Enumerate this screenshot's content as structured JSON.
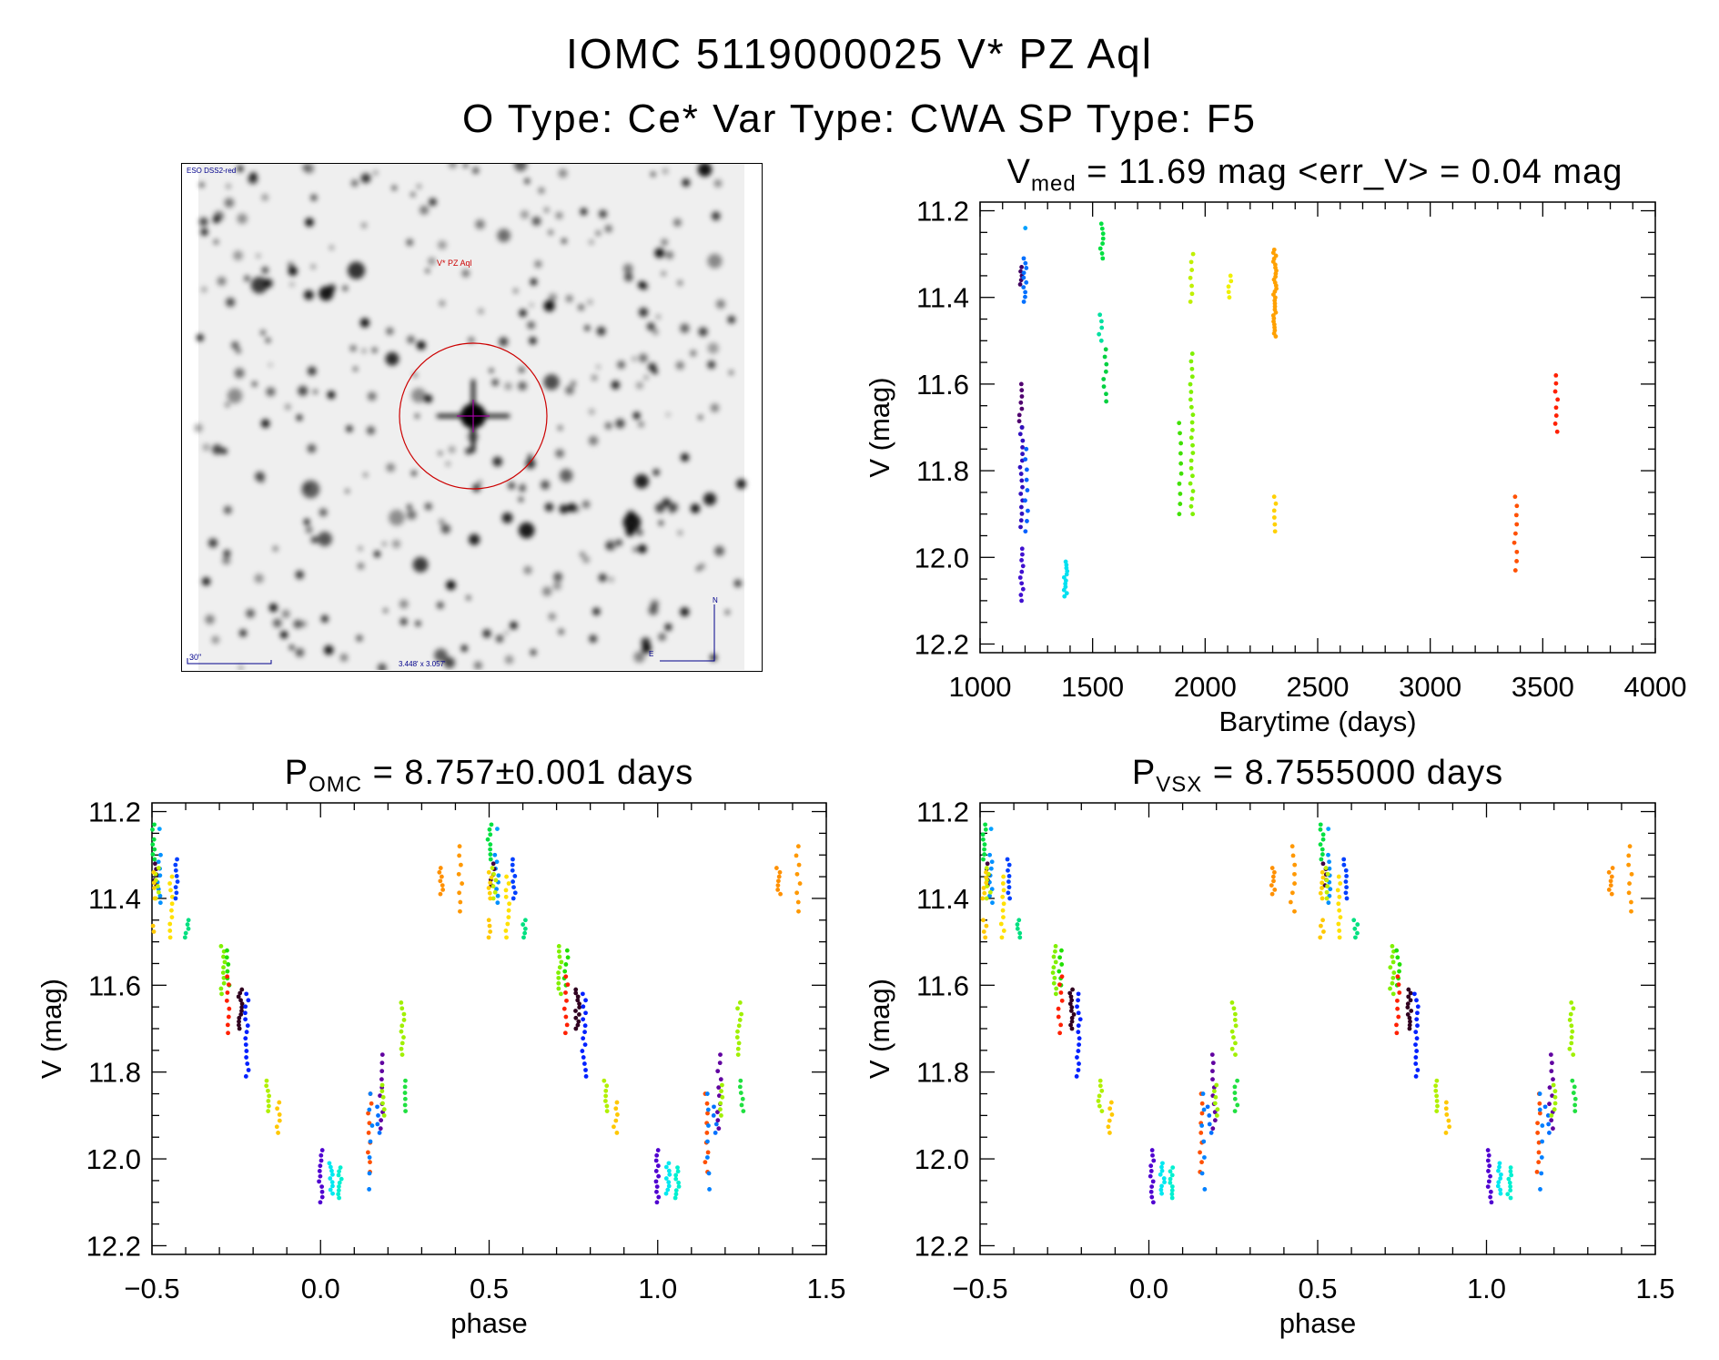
{
  "header": {
    "title_line1": "IOMC 5119000025    V* PZ Aql",
    "title_line2": "O Type: Ce*   Var Type: CWA   SP Type: F5"
  },
  "finder_image": {
    "survey_label": "ESO DSS2-red",
    "target_label": "V* PZ Aql",
    "scale_label": "30\"",
    "fov_label": "3.448' x 3.057'",
    "north_label": "N",
    "east_label": "E",
    "circle_color": "#cc0000",
    "label_color": "#00008b"
  },
  "chart_data": [
    {
      "type": "scatter",
      "id": "lightcurve",
      "title_main": "V",
      "title_sub": "med",
      "title_rest": " =  11.69 mag <err_V> =  0.04 mag",
      "xlabel": "Barytime (days)",
      "ylabel": "V (mag)",
      "xlim": [
        1000,
        4000
      ],
      "ylim": [
        12.22,
        11.18
      ],
      "xticks": [
        "1000",
        "1500",
        "2000",
        "2500",
        "3000",
        "3500",
        "4000"
      ],
      "yticks": [
        "11.2",
        "11.4",
        "11.6",
        "11.8",
        "12.0",
        "12.2"
      ],
      "clusters": [
        {
          "x": 1180,
          "ymin": 11.33,
          "ymax": 11.37,
          "n": 5,
          "color": "#400060"
        },
        {
          "x": 1180,
          "ymin": 11.6,
          "ymax": 11.7,
          "n": 8,
          "color": "#500070"
        },
        {
          "x": 1183,
          "ymin": 11.7,
          "ymax": 11.93,
          "n": 16,
          "color": "#3010c0"
        },
        {
          "x": 1185,
          "ymin": 11.98,
          "ymax": 12.1,
          "n": 10,
          "color": "#4010d0"
        },
        {
          "x": 1200,
          "ymin": 11.31,
          "ymax": 11.41,
          "n": 10,
          "color": "#0070ff"
        },
        {
          "x": 1200,
          "ymin": 11.24,
          "ymax": 11.24,
          "n": 1,
          "color": "#00a0ff"
        },
        {
          "x": 1205,
          "ymin": 11.75,
          "ymax": 11.94,
          "n": 9,
          "color": "#0060ff"
        },
        {
          "x": 1380,
          "ymin": 12.01,
          "ymax": 12.09,
          "n": 12,
          "color": "#00e0f0"
        },
        {
          "x": 1540,
          "ymin": 11.23,
          "ymax": 11.31,
          "n": 8,
          "color": "#00e040"
        },
        {
          "x": 1535,
          "ymin": 11.44,
          "ymax": 11.5,
          "n": 5,
          "color": "#00e0a0"
        },
        {
          "x": 1555,
          "ymin": 11.52,
          "ymax": 11.64,
          "n": 8,
          "color": "#00d040"
        },
        {
          "x": 1890,
          "ymin": 11.69,
          "ymax": 11.9,
          "n": 10,
          "color": "#40e000"
        },
        {
          "x": 1940,
          "ymin": 11.3,
          "ymax": 11.41,
          "n": 7,
          "color": "#c0f000"
        },
        {
          "x": 1940,
          "ymin": 11.53,
          "ymax": 11.9,
          "n": 22,
          "color": "#80f000"
        },
        {
          "x": 2110,
          "ymin": 11.35,
          "ymax": 11.4,
          "n": 5,
          "color": "#f0f000"
        },
        {
          "x": 2310,
          "ymin": 11.29,
          "ymax": 11.49,
          "n": 30,
          "color": "#ffa000"
        },
        {
          "x": 2310,
          "ymin": 11.86,
          "ymax": 11.94,
          "n": 6,
          "color": "#ffd000"
        },
        {
          "x": 3380,
          "ymin": 11.86,
          "ymax": 12.03,
          "n": 9,
          "color": "#ff5000"
        },
        {
          "x": 3560,
          "ymin": 11.58,
          "ymax": 11.71,
          "n": 8,
          "color": "#ff2000"
        }
      ]
    },
    {
      "type": "scatter",
      "id": "phase_omc",
      "title_main": "P",
      "title_sub": "OMC",
      "title_rest": " =  8.757±0.001 days",
      "xlabel": "phase",
      "ylabel": "V (mag)",
      "xlim": [
        -0.5,
        1.5
      ],
      "ylim": [
        12.22,
        11.18
      ],
      "xticks": [
        "−0.5",
        "0.0",
        "0.5",
        "1.0",
        "1.5"
      ],
      "yticks": [
        "11.2",
        "11.4",
        "11.6",
        "11.8",
        "12.0",
        "12.2"
      ],
      "phase_shift": 0.0
    },
    {
      "type": "scatter",
      "id": "phase_vsx",
      "title_main": "P",
      "title_sub": "VSX",
      "title_rest": " =  8.7555000 days",
      "xlabel": "phase",
      "ylabel": "V (mag)",
      "xlim": [
        -0.5,
        1.5
      ],
      "ylim": [
        12.22,
        11.18
      ],
      "xticks": [
        "−0.5",
        "0.0",
        "0.5",
        "1.0",
        "1.5"
      ],
      "yticks": [
        "11.2",
        "11.4",
        "11.6",
        "11.8",
        "12.0",
        "12.2"
      ],
      "phase_shift": 0.01
    }
  ],
  "phase_clusters": [
    {
      "x": -0.498,
      "ymin": 11.23,
      "ymax": 11.31,
      "n": 8,
      "color": "#00e040"
    },
    {
      "x": -0.478,
      "ymin": 11.3,
      "ymax": 11.41,
      "n": 8,
      "color": "#0090ff"
    },
    {
      "x": -0.478,
      "ymin": 11.24,
      "ymax": 11.24,
      "n": 1,
      "color": "#00a0ff"
    },
    {
      "x": -0.49,
      "ymin": 11.32,
      "ymax": 11.37,
      "n": 5,
      "color": "#400040"
    },
    {
      "x": -0.485,
      "ymin": 11.33,
      "ymax": 11.4,
      "n": 6,
      "color": "#c0f000"
    },
    {
      "x": -0.497,
      "ymin": 11.34,
      "ymax": 11.4,
      "n": 6,
      "color": "#ffd000"
    },
    {
      "x": -0.497,
      "ymin": 11.45,
      "ymax": 11.49,
      "n": 4,
      "color": "#ffc800"
    },
    {
      "x": -0.445,
      "ymin": 11.35,
      "ymax": 11.49,
      "n": 10,
      "color": "#ffe000"
    },
    {
      "x": -0.428,
      "ymin": 11.31,
      "ymax": 11.4,
      "n": 8,
      "color": "#0040ff"
    },
    {
      "x": -0.397,
      "ymin": 11.45,
      "ymax": 11.49,
      "n": 5,
      "color": "#00e080"
    },
    {
      "x": -0.29,
      "ymin": 11.51,
      "ymax": 11.62,
      "n": 10,
      "color": "#80f000"
    },
    {
      "x": -0.272,
      "ymin": 11.52,
      "ymax": 11.6,
      "n": 6,
      "color": "#20e000"
    },
    {
      "x": -0.272,
      "ymin": 11.58,
      "ymax": 11.71,
      "n": 8,
      "color": "#ff2000"
    },
    {
      "x": -0.238,
      "ymin": 11.61,
      "ymax": 11.7,
      "n": 12,
      "color": "#300020"
    },
    {
      "x": -0.218,
      "ymin": 11.62,
      "ymax": 11.81,
      "n": 14,
      "color": "#0020ff"
    },
    {
      "x": -0.155,
      "ymin": 11.82,
      "ymax": 11.89,
      "n": 7,
      "color": "#b0f000"
    },
    {
      "x": -0.125,
      "ymin": 11.87,
      "ymax": 11.94,
      "n": 6,
      "color": "#ffc800"
    },
    {
      "x": 0.0,
      "ymin": 11.98,
      "ymax": 12.1,
      "n": 11,
      "color": "#5000d0"
    },
    {
      "x": 0.03,
      "ymin": 12.01,
      "ymax": 12.08,
      "n": 9,
      "color": "#00e8f0"
    },
    {
      "x": 0.058,
      "ymin": 12.02,
      "ymax": 12.09,
      "n": 9,
      "color": "#00f0d0"
    },
    {
      "x": 0.145,
      "ymin": 11.85,
      "ymax": 12.03,
      "n": 9,
      "color": "#ff5000"
    },
    {
      "x": 0.15,
      "ymin": 11.85,
      "ymax": 12.07,
      "n": 7,
      "color": "#0080ff"
    },
    {
      "x": 0.17,
      "ymin": 11.88,
      "ymax": 11.94,
      "n": 4,
      "color": "#0070ff"
    },
    {
      "x": 0.182,
      "ymin": 11.76,
      "ymax": 11.93,
      "n": 10,
      "color": "#6000a0"
    },
    {
      "x": 0.188,
      "ymin": 11.83,
      "ymax": 11.9,
      "n": 6,
      "color": "#a0f000"
    },
    {
      "x": 0.242,
      "ymin": 11.64,
      "ymax": 11.76,
      "n": 10,
      "color": "#a0f000"
    },
    {
      "x": 0.25,
      "ymin": 11.82,
      "ymax": 11.89,
      "n": 6,
      "color": "#20e040"
    },
    {
      "x": 0.358,
      "ymin": 11.33,
      "ymax": 11.39,
      "n": 7,
      "color": "#ff9000"
    },
    {
      "x": 0.416,
      "ymin": 11.28,
      "ymax": 11.43,
      "n": 8,
      "color": "#ff9800"
    }
  ]
}
